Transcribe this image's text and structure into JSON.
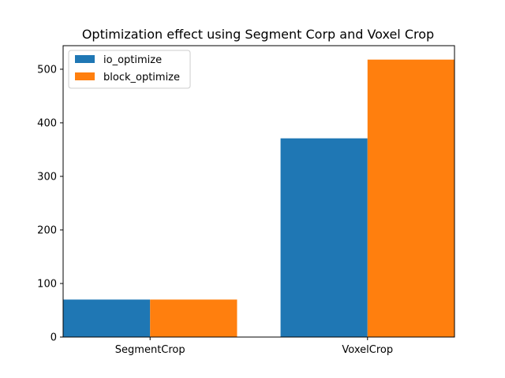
{
  "chart_data": {
    "type": "bar",
    "title": "Optimization effect using Segment Corp and Voxel Crop",
    "xlabel": "",
    "ylabel": "",
    "categories": [
      "SegmentCrop",
      "VoxelCrop"
    ],
    "series": [
      {
        "name": "io_optimize",
        "values": [
          70,
          371
        ],
        "color": "#1f77b4"
      },
      {
        "name": "block_optimize",
        "values": [
          70,
          518
        ],
        "color": "#ff7f0e"
      }
    ],
    "ylim": [
      0,
      544
    ],
    "yticks": [
      0,
      100,
      200,
      300,
      400,
      500
    ],
    "grid": false,
    "legend_position": "top-left"
  }
}
